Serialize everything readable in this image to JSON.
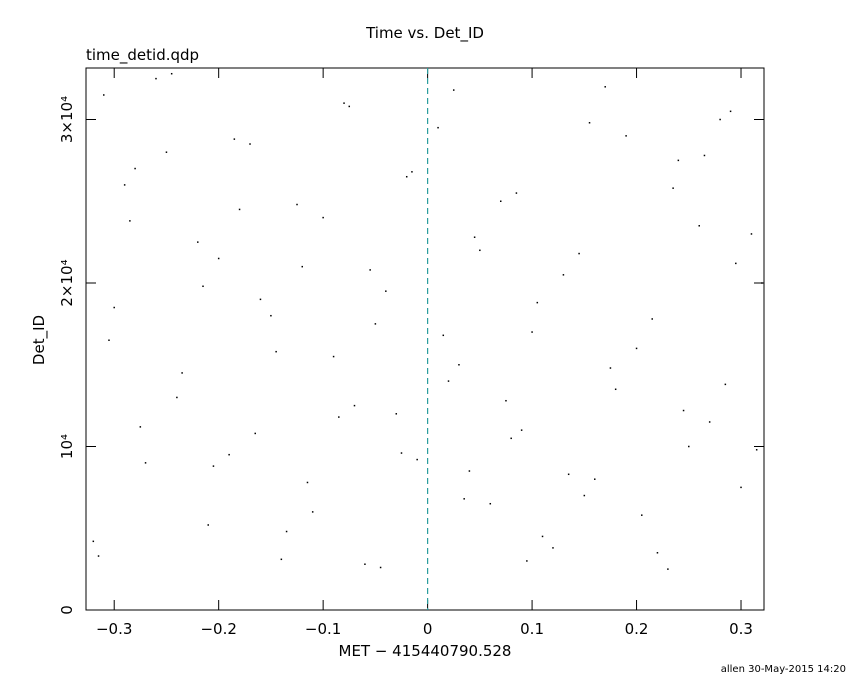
{
  "chart_data": {
    "type": "scatter",
    "title": "Time vs. Det_ID",
    "subtitle": "time_detid.qdp",
    "x_label": "MET − 415440790.528",
    "y_label": "Det_ID",
    "footer": "allen 30-May-2015 14:20",
    "color": "#000000",
    "reference_line": {
      "x": 0,
      "color": "#2a9d9d"
    },
    "xlim": [
      -0.327,
      0.322
    ],
    "ylim": [
      0,
      33150
    ],
    "xticks": [
      {
        "value": -0.3,
        "label": "−0.3"
      },
      {
        "value": -0.2,
        "label": "−0.2"
      },
      {
        "value": -0.1,
        "label": "−0.1"
      },
      0,
      0.1,
      0.2,
      0.3
    ],
    "yticks": [
      0,
      {
        "value": 10000,
        "label": "10⁴"
      },
      {
        "value": 20000,
        "label": "2×10⁴"
      },
      {
        "value": 30000,
        "label": "3×10⁴"
      }
    ],
    "x": [
      -0.31,
      -0.25,
      -0.18,
      -0.12,
      -0.05,
      0.02,
      0.08,
      0.15,
      0.22,
      0.29,
      -0.29,
      -0.22,
      -0.16,
      -0.09,
      -0.03,
      0.04,
      0.11,
      0.17,
      0.24,
      0.31,
      -0.3,
      -0.24,
      -0.19,
      -0.11,
      -0.06,
      0.01,
      0.07,
      0.13,
      0.2,
      0.27,
      -0.27,
      -0.21,
      -0.14,
      -0.08,
      -0.02,
      0.05,
      0.1,
      0.18,
      0.25,
      0.3,
      -0.32,
      -0.26,
      -0.17,
      -0.1,
      -0.04,
      0.03,
      0.09,
      0.16,
      0.23,
      0.28,
      -0.28,
      -0.2,
      -0.15,
      -0.07,
      -0.01,
      0.06,
      0.12,
      0.19,
      0.26,
      0.32,
      -0.305,
      -0.235,
      -0.165,
      -0.115,
      -0.045,
      0.025,
      0.085,
      0.145,
      0.215,
      0.285,
      -0.275,
      -0.205,
      -0.135,
      -0.075,
      -0.015,
      0.045,
      0.105,
      0.175,
      0.245,
      0.315,
      -0.315,
      -0.245,
      -0.185,
      -0.125,
      -0.055,
      0.015,
      0.075,
      0.135,
      0.205,
      0.265,
      -0.285,
      -0.215,
      -0.145,
      -0.085,
      -0.025,
      0.035,
      0.095,
      0.155,
      0.235,
      0.295
    ],
    "values": [
      31500,
      28000,
      24500,
      21000,
      17500,
      14000,
      10500,
      7000,
      3500,
      30500,
      26000,
      22500,
      19000,
      15500,
      12000,
      8500,
      4500,
      32000,
      27500,
      23000,
      18500,
      13000,
      9500,
      6000,
      2800,
      29500,
      25000,
      20500,
      16000,
      11500,
      9000,
      5200,
      3100,
      31000,
      26500,
      22000,
      17000,
      13500,
      10000,
      7500,
      4200,
      32500,
      28500,
      24000,
      19500,
      15000,
      11000,
      8000,
      2500,
      30000,
      27000,
      21500,
      18000,
      12500,
      9200,
      6500,
      3800,
      29000,
      23500,
      20000,
      16500,
      14500,
      10800,
      7800,
      2600,
      31800,
      25500,
      21800,
      17800,
      13800,
      11200,
      8800,
      4800,
      30800,
      26800,
      22800,
      18800,
      14800,
      12200,
      9800,
      3300,
      32800,
      28800,
      24800,
      20800,
      16800,
      12800,
      8300,
      5800,
      27800,
      23800,
      19800,
      15800,
      11800,
      9600,
      6800,
      3000,
      29800,
      25800,
      21200
    ]
  }
}
